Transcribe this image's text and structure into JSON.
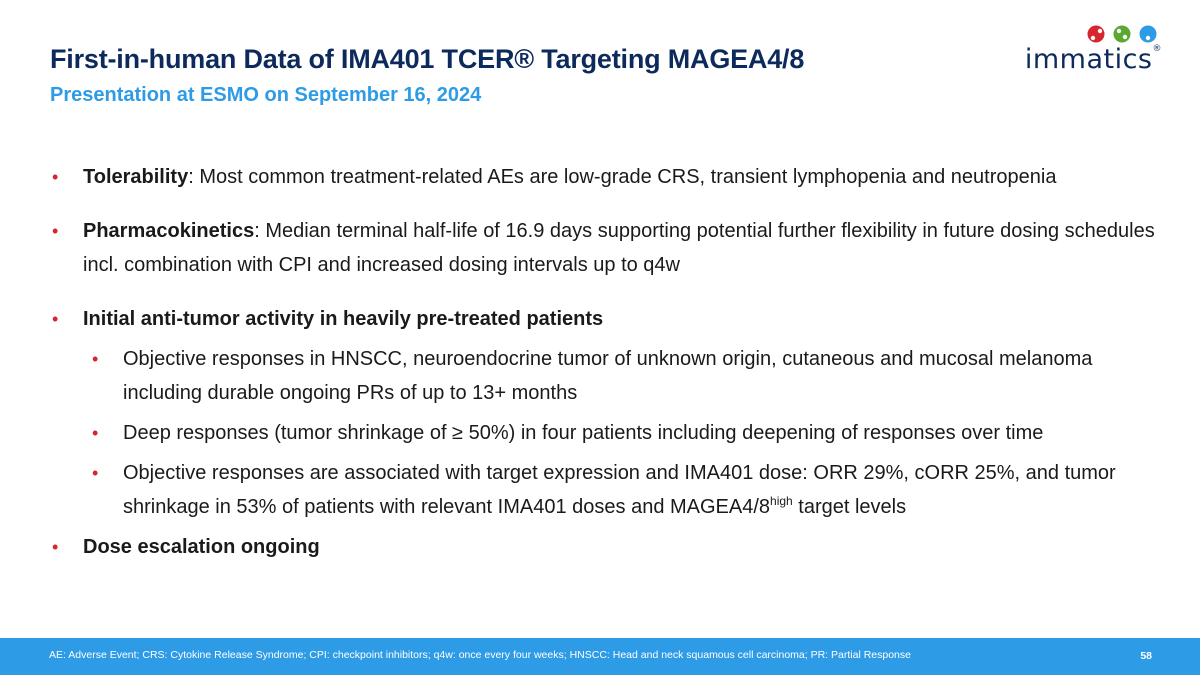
{
  "header": {
    "title": "First-in-human Data of IMA401 TCER® Targeting MAGEA4/8",
    "subtitle": "Presentation at ESMO on September 16, 2024"
  },
  "logo": {
    "text": "immatics",
    "registered": "®",
    "dot_colors": [
      "#d7262e",
      "#5aa832",
      "#2e9be6"
    ]
  },
  "bullets": [
    {
      "bold": "Tolerability",
      "text": ": Most common treatment-related AEs are low-grade CRS, transient lymphopenia and neutropenia"
    },
    {
      "bold": "Pharmacokinetics",
      "text": ": Median terminal half-life of 16.9 days supporting potential further flexibility in future dosing schedules incl. combination with CPI and increased dosing intervals up to q4w"
    },
    {
      "bold": "Initial anti-tumor activity in heavily pre-treated patients",
      "sub": [
        {
          "text": "Objective responses in HNSCC, neuroendocrine tumor of unknown origin, cutaneous and mucosal melanoma including durable ongoing PRs of up to 13+ months"
        },
        {
          "text": "Deep responses (tumor shrinkage of ≥ 50%) in four patients including deepening of responses over time"
        },
        {
          "text": "Objective responses are associated with target expression and IMA401 dose: ORR 29%, cORR 25%, and tumor shrinkage in 53% of patients with relevant IMA401 doses and MAGEA4/8",
          "sup": "high",
          "after": " target levels"
        }
      ]
    },
    {
      "bold": "Dose escalation ongoing"
    }
  ],
  "footer": {
    "footnote": "AE: Adverse Event; CRS: Cytokine Release Syndrome; CPI: checkpoint inhibitors; q4w: once every four weeks; HNSCC: Head and neck squamous cell carcinoma; PR: Partial Response",
    "page_number": "58"
  },
  "colors": {
    "title": "#0d2a5c",
    "accent": "#2e9be6",
    "bullet": "#d7262e"
  }
}
